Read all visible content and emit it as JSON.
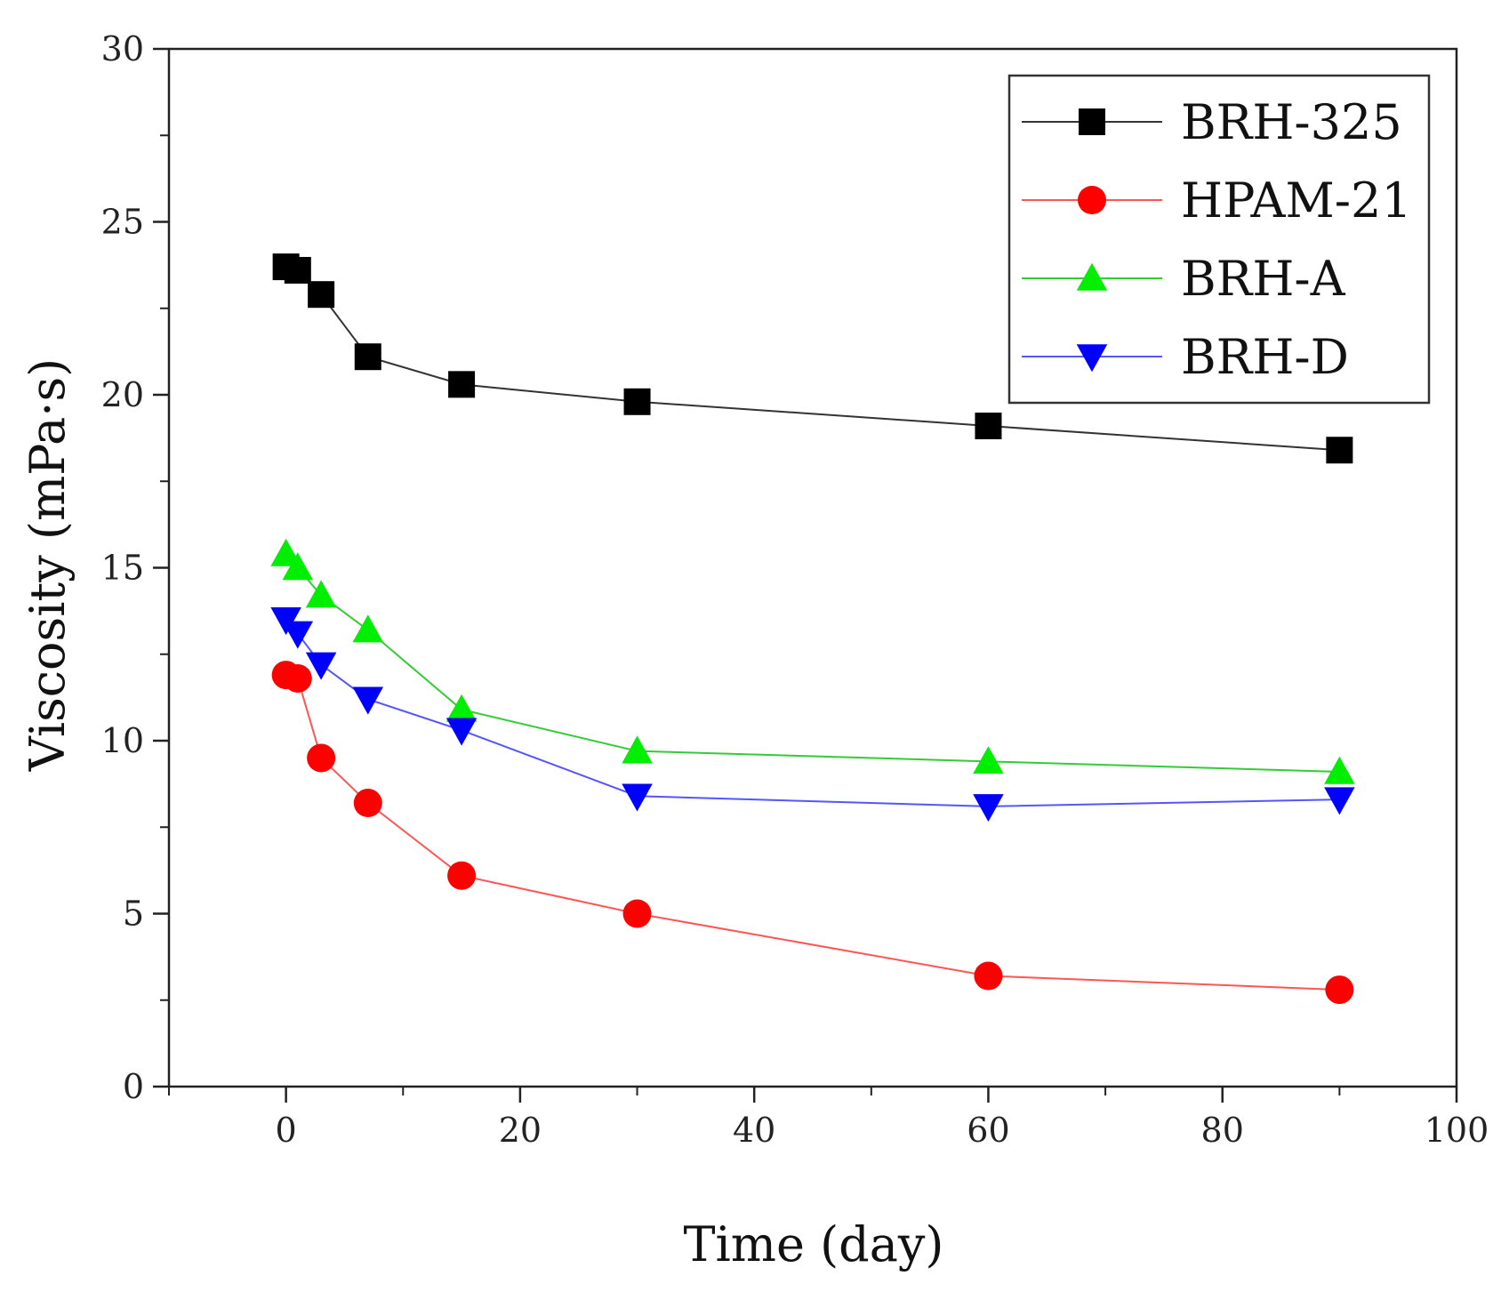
{
  "chart_data": {
    "type": "line",
    "title": "",
    "xlabel": "Time (day)",
    "ylabel": "Viscosity (mPa·s)",
    "xlim": [
      -10,
      100
    ],
    "ylim": [
      0,
      30
    ],
    "xticks": [
      0,
      20,
      40,
      60,
      80,
      100
    ],
    "yticks": [
      0,
      5,
      10,
      15,
      20,
      25,
      30
    ],
    "x": [
      0,
      1,
      3,
      7,
      15,
      30,
      60,
      90
    ],
    "legend_position": "top-right",
    "series": [
      {
        "name": "BRH-325",
        "marker": "square",
        "color": "#000000",
        "line_color": "#333333",
        "values": [
          23.7,
          23.6,
          22.9,
          21.1,
          20.3,
          19.8,
          19.1,
          18.4
        ]
      },
      {
        "name": "HPAM-21",
        "marker": "circle",
        "color": "#ff0000",
        "line_color": "#ff5555",
        "values": [
          11.9,
          11.8,
          9.5,
          8.2,
          6.1,
          5.0,
          3.2,
          2.8
        ]
      },
      {
        "name": "BRH-A",
        "marker": "triangle-up",
        "color": "#00ee00",
        "line_color": "#33cc33",
        "values": [
          15.4,
          15.0,
          14.2,
          13.2,
          10.9,
          9.7,
          9.4,
          9.1
        ]
      },
      {
        "name": "BRH-D",
        "marker": "triangle-down",
        "color": "#0000ff",
        "line_color": "#5555ff",
        "values": [
          13.5,
          13.1,
          12.2,
          11.2,
          10.3,
          8.4,
          8.1,
          8.3
        ]
      }
    ]
  }
}
